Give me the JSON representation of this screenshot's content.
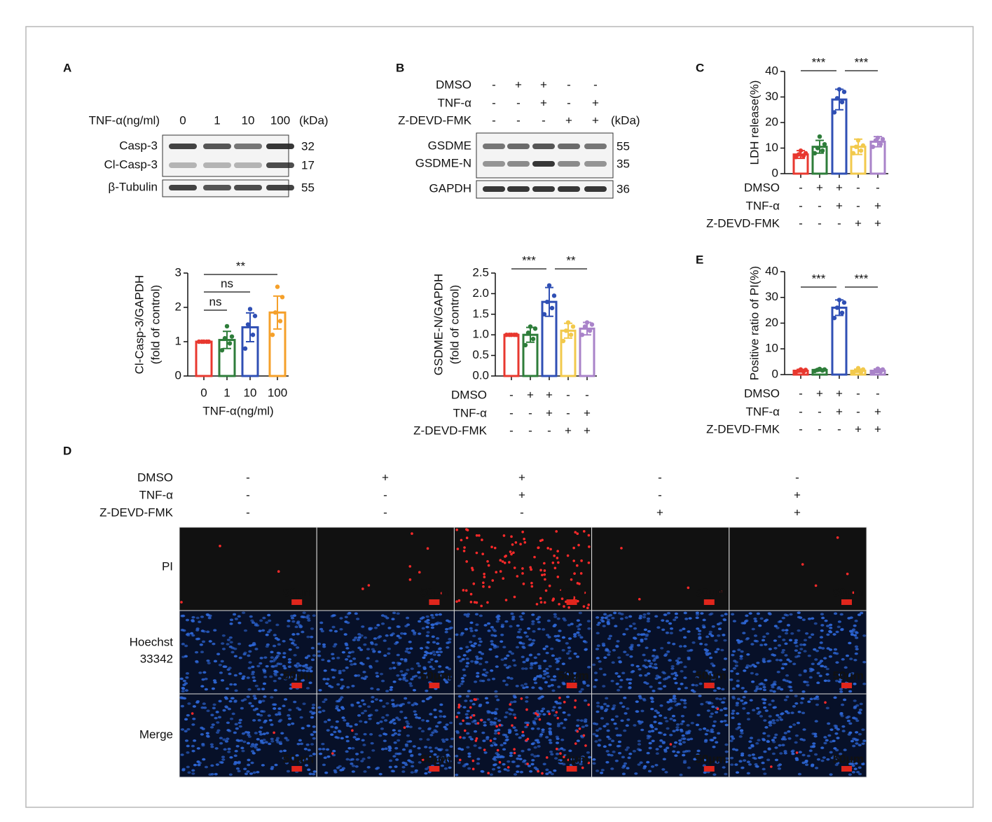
{
  "panel_labels": [
    "A",
    "B",
    "C",
    "D",
    "E"
  ],
  "blot_a": {
    "header": "TNF-α(ng/ml)",
    "lanes": [
      "0",
      "1",
      "10",
      "100"
    ],
    "unit": "(kDa)",
    "rows": [
      {
        "name": "Casp-3",
        "kda": 32
      },
      {
        "name": "Cl-Casp-3",
        "kda": 17
      },
      {
        "name": "β-Tubulin",
        "kda": 55
      }
    ]
  },
  "blot_b": {
    "conditions": [
      {
        "name": "DMSO",
        "signs": [
          "-",
          "+",
          "+",
          "-",
          "-"
        ]
      },
      {
        "name": "TNF-α",
        "signs": [
          "-",
          "-",
          "+",
          "-",
          "+"
        ]
      },
      {
        "name": "Z-DEVD-FMK",
        "signs": [
          "-",
          "-",
          "-",
          "+",
          "+"
        ]
      }
    ],
    "unit": "(kDa)",
    "rows": [
      {
        "name": "GSDME",
        "kda": 55
      },
      {
        "name": "GSDME-N",
        "kda": 35
      },
      {
        "name": "GAPDH",
        "kda": 36
      }
    ]
  },
  "chart_data": [
    {
      "type": "bar",
      "y_label": [
        "Cl-Casp-3/GAPDH",
        "(fold of control)"
      ],
      "x_label": "TNF-α(ng/ml)",
      "categories": [
        "0",
        "1",
        "10",
        "100"
      ],
      "colors": [
        "#e8382f",
        "#2e7d3a",
        "#2f4fb4",
        "#f5a02a"
      ],
      "values": [
        1.0,
        1.05,
        1.42,
        1.85
      ],
      "errors": [
        0.02,
        0.25,
        0.42,
        0.48
      ],
      "points": [
        [
          1,
          1,
          1,
          1,
          1
        ],
        [
          0.75,
          0.95,
          1.1,
          1.15,
          1.45
        ],
        [
          0.8,
          1.2,
          1.5,
          1.75,
          1.95
        ],
        [
          1.2,
          1.6,
          1.85,
          2.3,
          2.6
        ]
      ],
      "ylim": [
        0,
        3
      ],
      "yticks": [
        0,
        1,
        2,
        3
      ],
      "comparisons": [
        {
          "between": [
            0,
            1
          ],
          "label": "ns"
        },
        {
          "between": [
            0,
            2
          ],
          "label": "ns"
        },
        {
          "between": [
            0,
            3
          ],
          "label": "**"
        }
      ]
    },
    {
      "type": "bar",
      "y_label": [
        "GSDME-N/GAPDH",
        "(fold of control)"
      ],
      "conditions": [
        {
          "name": "DMSO",
          "signs": [
            "-",
            "+",
            "+",
            "-",
            "-"
          ]
        },
        {
          "name": "TNF-α",
          "signs": [
            "-",
            "-",
            "+",
            "-",
            "+"
          ]
        },
        {
          "name": "Z-DEVD-FMK",
          "signs": [
            "-",
            "-",
            "-",
            "+",
            "+"
          ]
        }
      ],
      "colors": [
        "#e8382f",
        "#2e7d3a",
        "#2f4fb4",
        "#f2c94c",
        "#a983c9"
      ],
      "values": [
        1.0,
        1.0,
        1.8,
        1.1,
        1.15
      ],
      "errors": [
        0.02,
        0.18,
        0.35,
        0.18,
        0.15
      ],
      "points": [
        [
          1,
          1,
          1,
          1,
          1
        ],
        [
          0.75,
          0.9,
          1.05,
          1.15,
          1.2
        ],
        [
          1.5,
          1.65,
          1.8,
          1.95,
          2.2
        ],
        [
          0.85,
          1.0,
          1.1,
          1.2,
          1.3
        ],
        [
          1.0,
          1.1,
          1.2,
          1.25,
          1.3
        ]
      ],
      "ylim": [
        0,
        2.5
      ],
      "yticks": [
        {
          "value": 0,
          "label": "0.0"
        },
        {
          "value": 0.5,
          "label": "0.5"
        },
        {
          "value": 1,
          "label": "1.0"
        },
        {
          "value": 1.5,
          "label": "1.5"
        },
        {
          "value": 2,
          "label": "2.0"
        },
        {
          "value": 2.5,
          "label": "2.5"
        }
      ],
      "comparisons": [
        {
          "between": [
            0,
            2
          ],
          "label": "***"
        },
        {
          "between": [
            2,
            4
          ],
          "label": "**"
        }
      ]
    },
    {
      "type": "bar",
      "y_label": [
        "LDH release(%)"
      ],
      "conditions": [
        {
          "name": "DMSO",
          "signs": [
            "-",
            "+",
            "+",
            "-",
            "-"
          ]
        },
        {
          "name": "TNF-α",
          "signs": [
            "-",
            "-",
            "+",
            "-",
            "+"
          ]
        },
        {
          "name": "Z-DEVD-FMK",
          "signs": [
            "-",
            "-",
            "-",
            "+",
            "+"
          ]
        }
      ],
      "colors": [
        "#e8382f",
        "#2e7d3a",
        "#2f4fb4",
        "#f2c94c",
        "#a983c9"
      ],
      "values": [
        7.5,
        10.5,
        29,
        10.5,
        12.5
      ],
      "errors": [
        1.5,
        2.5,
        4,
        3,
        2
      ],
      "points": [
        [
          6.5,
          7,
          7.5,
          8,
          9
        ],
        [
          8,
          9,
          10,
          11.5,
          14.5
        ],
        [
          24,
          28,
          29.5,
          32,
          33
        ],
        [
          8,
          9,
          10.5,
          11,
          13
        ],
        [
          10.5,
          11.5,
          13,
          13.5,
          14
        ]
      ],
      "ylim": [
        0,
        40
      ],
      "yticks": [
        0,
        10,
        20,
        30,
        40
      ],
      "comparisons": [
        {
          "between": [
            0,
            2
          ],
          "label": "***"
        },
        {
          "between": [
            2,
            4
          ],
          "label": "***"
        }
      ]
    },
    {
      "type": "bar",
      "y_label": [
        "Positive ratio of PI(%)"
      ],
      "conditions": [
        {
          "name": "DMSO",
          "signs": [
            "-",
            "+",
            "+",
            "-",
            "-"
          ]
        },
        {
          "name": "TNF-α",
          "signs": [
            "-",
            "-",
            "+",
            "-",
            "+"
          ]
        },
        {
          "name": "Z-DEVD-FMK",
          "signs": [
            "-",
            "-",
            "-",
            "+",
            "+"
          ]
        }
      ],
      "colors": [
        "#e8382f",
        "#2e7d3a",
        "#2f4fb4",
        "#f2c94c",
        "#a983c9"
      ],
      "values": [
        1.5,
        1.8,
        26,
        1.5,
        1.5
      ],
      "errors": [
        0.5,
        0.4,
        3,
        0.6,
        0.7
      ],
      "points": [
        [
          1,
          1.2,
          1.5,
          1.8,
          2
        ],
        [
          1.4,
          1.6,
          1.8,
          2,
          2.2
        ],
        [
          22,
          24,
          26,
          28,
          29
        ],
        [
          0.8,
          1,
          1.5,
          2,
          2.5
        ],
        [
          0.7,
          1.2,
          1.5,
          2,
          2.3
        ]
      ],
      "ylim": [
        0,
        40
      ],
      "yticks": [
        0,
        10,
        20,
        30,
        40
      ],
      "comparisons": [
        {
          "between": [
            0,
            2
          ],
          "label": "***"
        },
        {
          "between": [
            2,
            4
          ],
          "label": "***"
        }
      ]
    }
  ],
  "microscopy": {
    "conditions": [
      {
        "name": "DMSO",
        "signs": [
          "-",
          "+",
          "+",
          "-",
          "-"
        ]
      },
      {
        "name": "TNF-α",
        "signs": [
          "-",
          "-",
          "+",
          "-",
          "+"
        ]
      },
      {
        "name": "Z-DEVD-FMK",
        "signs": [
          "-",
          "-",
          "-",
          "+",
          "+"
        ]
      }
    ],
    "channels": [
      [
        "PI"
      ],
      [
        "Hoechst",
        "33342"
      ],
      [
        "Merge"
      ]
    ],
    "scale_bar": "50μm"
  }
}
